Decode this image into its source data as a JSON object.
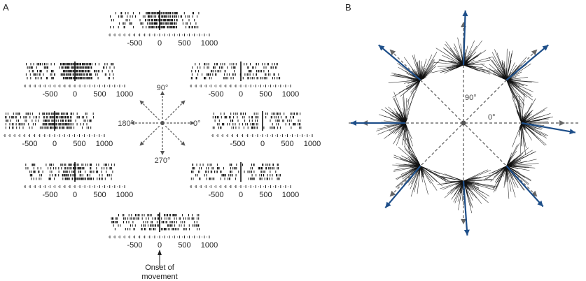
{
  "panels": {
    "a": {
      "letter": "A",
      "axis_ticks": [
        "-500",
        "0",
        "500",
        "1000"
      ],
      "direction_labels": {
        "up": "90°",
        "left": "180°",
        "right": "0°",
        "down": "270°"
      },
      "onset_label_line1": "Onset of",
      "onset_label_line2": "movement",
      "rasters": [
        {
          "direction": "90",
          "pref": 0.9
        },
        {
          "direction": "135",
          "pref": 1.0
        },
        {
          "direction": "180",
          "pref": 0.8
        },
        {
          "direction": "225",
          "pref": 0.6
        },
        {
          "direction": "270",
          "pref": 0.35
        },
        {
          "direction": "315",
          "pref": 0.1
        },
        {
          "direction": "0",
          "pref": 0.2
        },
        {
          "direction": "45",
          "pref": 0.15
        }
      ]
    },
    "b": {
      "letter": "B",
      "angle_labels": {
        "up": "90°",
        "right": "0°"
      },
      "clusters": [
        {
          "angle": 0,
          "pop_vector_angle": -10
        },
        {
          "angle": 45,
          "pop_vector_angle": 40
        },
        {
          "angle": 90,
          "pop_vector_angle": 88
        },
        {
          "angle": 135,
          "pop_vector_angle": 140
        },
        {
          "angle": 180,
          "pop_vector_angle": 180
        },
        {
          "angle": 225,
          "pop_vector_angle": 230
        },
        {
          "angle": 270,
          "pop_vector_angle": 274
        },
        {
          "angle": 315,
          "pop_vector_angle": 312
        }
      ]
    }
  },
  "colors": {
    "raster": "#111111",
    "axis": "#222222",
    "dashed": "#555555",
    "population_vector": "#1d4e89",
    "cell_vectors": "#111111"
  }
}
